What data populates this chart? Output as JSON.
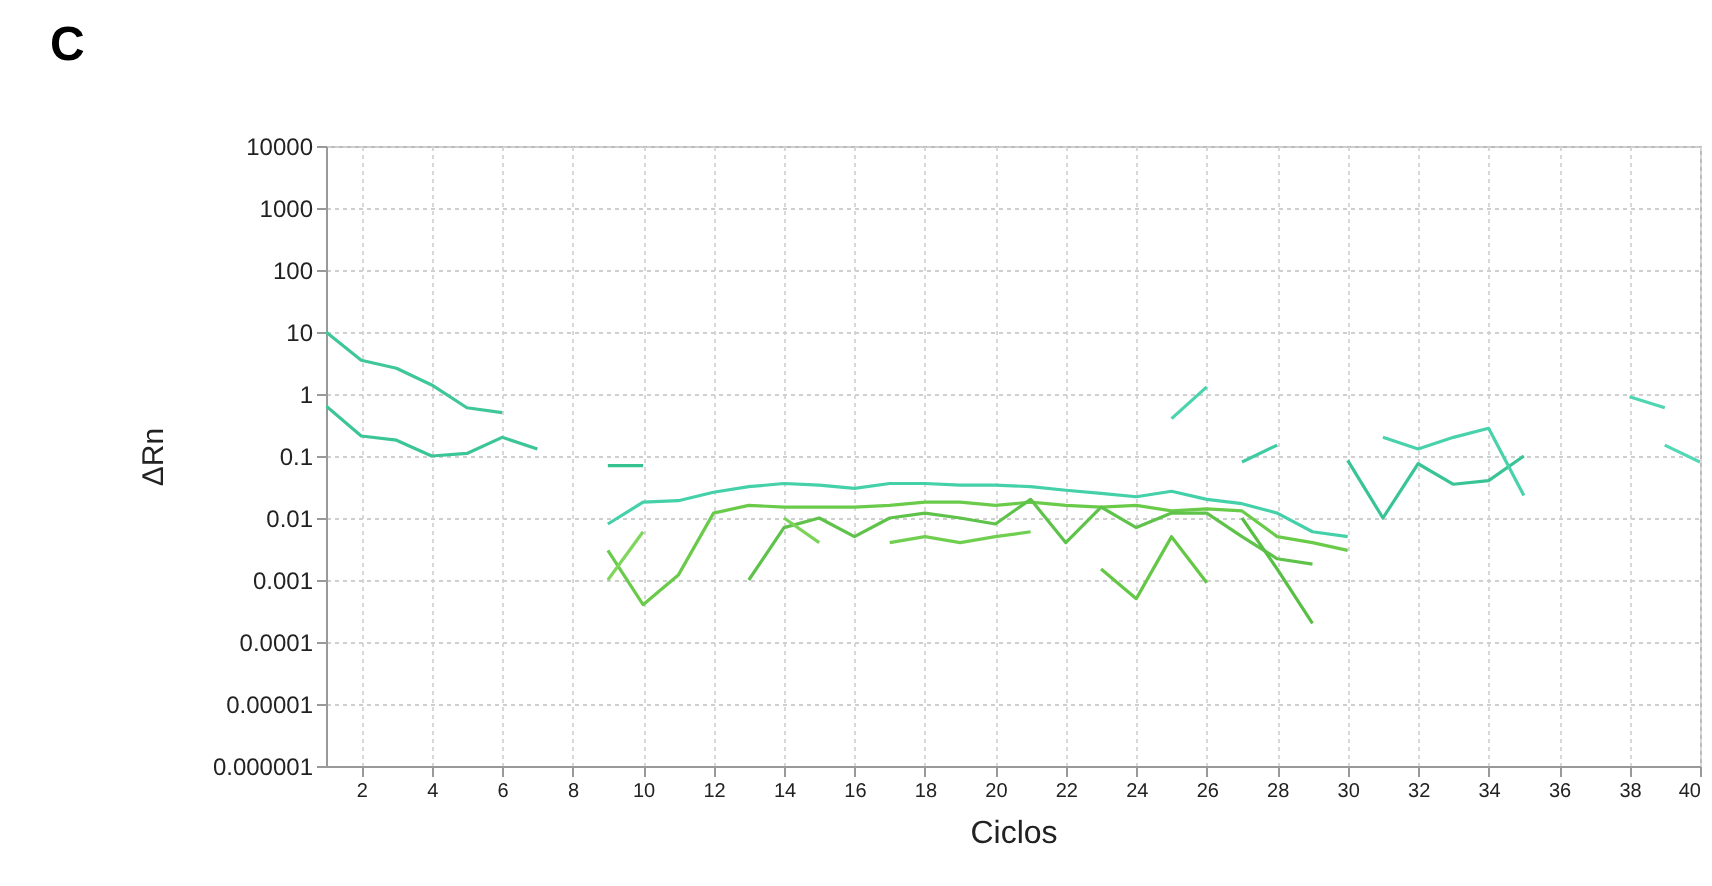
{
  "chart_data": {
    "type": "line",
    "title": "C",
    "xlabel": "Ciclos",
    "ylabel": "ΔRn",
    "log": "y",
    "grid": true,
    "line_style": "solid",
    "marker": "none",
    "xlim": [
      1,
      40
    ],
    "xticks": [
      2,
      4,
      6,
      8,
      10,
      12,
      14,
      16,
      18,
      20,
      22,
      24,
      26,
      28,
      30,
      32,
      34,
      36,
      38,
      40
    ],
    "ylim": [
      1e-06,
      10000
    ],
    "yticks": [
      {
        "value": 1e-06,
        "label": "0.000001"
      },
      {
        "value": 1e-05,
        "label": "0.00001"
      },
      0.0001,
      0.001,
      0.01,
      0.1,
      1,
      10,
      100,
      1000,
      10000
    ],
    "series": [
      {
        "color": "#3fc79a",
        "x": [
          1,
          2,
          3,
          4,
          5,
          6
        ],
        "values": [
          10,
          3.5,
          2.6,
          1.4,
          0.6,
          0.5
        ]
      },
      {
        "color": "#3cc596",
        "x": [
          1,
          2,
          3,
          4,
          5,
          6,
          7
        ],
        "values": [
          0.64,
          0.21,
          0.18,
          0.1,
          0.11,
          0.2,
          0.13
        ]
      },
      {
        "color": "#36c290",
        "x": [
          9,
          10
        ],
        "values": [
          0.07,
          0.07
        ]
      },
      {
        "color": "#44d0a8",
        "x": [
          9,
          10,
          11,
          12,
          13,
          14,
          15,
          16,
          17,
          18,
          19,
          20,
          21,
          22,
          23,
          24,
          25,
          26,
          27,
          28,
          29,
          30
        ],
        "values": [
          0.008,
          0.018,
          0.019,
          0.026,
          0.032,
          0.036,
          0.034,
          0.03,
          0.036,
          0.036,
          0.034,
          0.034,
          0.032,
          0.028,
          0.025,
          0.022,
          0.027,
          0.02,
          0.017,
          0.012,
          0.006,
          0.005
        ]
      },
      {
        "color": "#6acb4a",
        "x": [
          9,
          10,
          11,
          12,
          13,
          14,
          15,
          16,
          17,
          18,
          19,
          20,
          21,
          22,
          23,
          24,
          25,
          26,
          27,
          28,
          29,
          30
        ],
        "values": [
          0.003,
          0.0004,
          0.0012,
          0.012,
          0.016,
          0.015,
          0.015,
          0.015,
          0.016,
          0.018,
          0.018,
          0.016,
          0.018,
          0.016,
          0.015,
          0.016,
          0.013,
          0.014,
          0.013,
          0.005,
          0.004,
          0.003
        ]
      },
      {
        "color": "#80d65c",
        "x": [
          9,
          10
        ],
        "values": [
          0.001,
          0.006
        ]
      },
      {
        "color": "#5fc24a",
        "x": [
          13,
          14,
          15,
          16,
          17,
          18,
          19,
          20,
          21,
          22,
          23,
          24,
          25,
          26,
          27,
          28,
          29
        ],
        "values": [
          0.001,
          0.007,
          0.01,
          0.005,
          0.01,
          0.012,
          0.01,
          0.008,
          0.02,
          0.004,
          0.015,
          0.007,
          0.012,
          0.012,
          0.005,
          0.0022,
          0.0018
        ]
      },
      {
        "color": "#7bd35a",
        "x": [
          14,
          15
        ],
        "values": [
          0.01,
          0.004
        ]
      },
      {
        "color": "#70cf50",
        "x": [
          17,
          18,
          19,
          20,
          21
        ],
        "values": [
          0.004,
          0.005,
          0.004,
          0.005,
          0.006
        ]
      },
      {
        "color": "#64c846",
        "x": [
          23,
          24,
          25,
          26
        ],
        "values": [
          0.0015,
          0.0005,
          0.005,
          0.0009
        ]
      },
      {
        "color": "#4ad4ae",
        "x": [
          25,
          26
        ],
        "values": [
          0.4,
          1.3
        ]
      },
      {
        "color": "#40cca2",
        "x": [
          27,
          28
        ],
        "values": [
          0.08,
          0.15
        ]
      },
      {
        "color": "#58be44",
        "x": [
          27,
          28,
          29
        ],
        "values": [
          0.01,
          0.0015,
          0.0002
        ]
      },
      {
        "color": "#39c494",
        "x": [
          30,
          31,
          32,
          33,
          34,
          35
        ],
        "values": [
          0.085,
          0.01,
          0.075,
          0.035,
          0.04,
          0.1
        ]
      },
      {
        "color": "#48d2ab",
        "x": [
          31,
          32,
          33,
          34,
          35
        ],
        "values": [
          0.2,
          0.13,
          0.2,
          0.28,
          0.023
        ]
      },
      {
        "color": "#4ed6b2",
        "x": [
          38,
          39
        ],
        "values": [
          0.9,
          0.6
        ]
      },
      {
        "color": "#52d8b6",
        "x": [
          39,
          40
        ],
        "values": [
          0.15,
          0.08
        ]
      }
    ]
  }
}
